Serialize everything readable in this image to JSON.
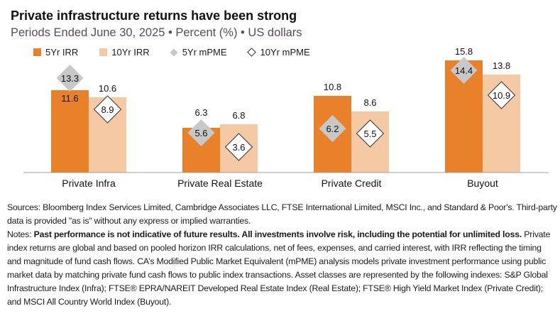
{
  "colors": {
    "irr5": "#E8812A",
    "irr10": "#F6C9A5",
    "mpme5": "#C8C8C8",
    "mpme10": "#FFFFFF",
    "axis": "#A0A0A0"
  },
  "chart_data": {
    "type": "bar",
    "title": "Private infrastructure returns have been strong",
    "subtitle": "Periods Ended June 30, 2025 • Percent (%) • US dollars",
    "categories": [
      "Private Infra",
      "Private Real Estate",
      "Private Credit",
      "Buyout"
    ],
    "series": [
      {
        "name": "5Yr IRR",
        "kind": "bar",
        "values": [
          11.6,
          6.3,
          10.8,
          15.8
        ]
      },
      {
        "name": "10Yr IRR",
        "kind": "bar",
        "values": [
          10.6,
          6.8,
          8.6,
          13.8
        ]
      },
      {
        "name": "5Yr mPME",
        "kind": "marker",
        "values": [
          13.3,
          5.6,
          6.2,
          14.4
        ]
      },
      {
        "name": "10Yr mPME",
        "kind": "marker",
        "values": [
          8.9,
          3.6,
          5.5,
          10.9
        ]
      }
    ],
    "ylim": [
      0,
      16
    ],
    "grid": false,
    "legend": "top"
  },
  "footnotes": {
    "sources": "Sources: Bloomberg Index Services Limited, Cambridge Associates LLC, FTSE International Limited, MSCI Inc., and Standard & Poor's. Third-party data is provided \"as is\" without any express or implied warranties.",
    "notes_label": "Notes: ",
    "notes_bold": "Past performance is not indicative of future results. All investments involve risk, including the potential for unlimited loss.",
    "notes_text": " Private index returns are global and based on pooled horizon IRR calculations, net of fees, expenses, and carried interest, with IRR reflecting the timing and magnitude of fund cash flows. CA’s Modified Public Market Equivalent (mPME) analysis models private investment performance using public market data by matching private fund cash flows to public index transactions. Asset classes are represented by the following indexes: S&P Global Infrastructure Index (Infra); FTSE® EPRA/NAREIT Developed Real Estate Index (Real Estate); FTSE® High Yield Market Index (Private Credit); and MSCI All Country World Index (Buyout)."
  }
}
